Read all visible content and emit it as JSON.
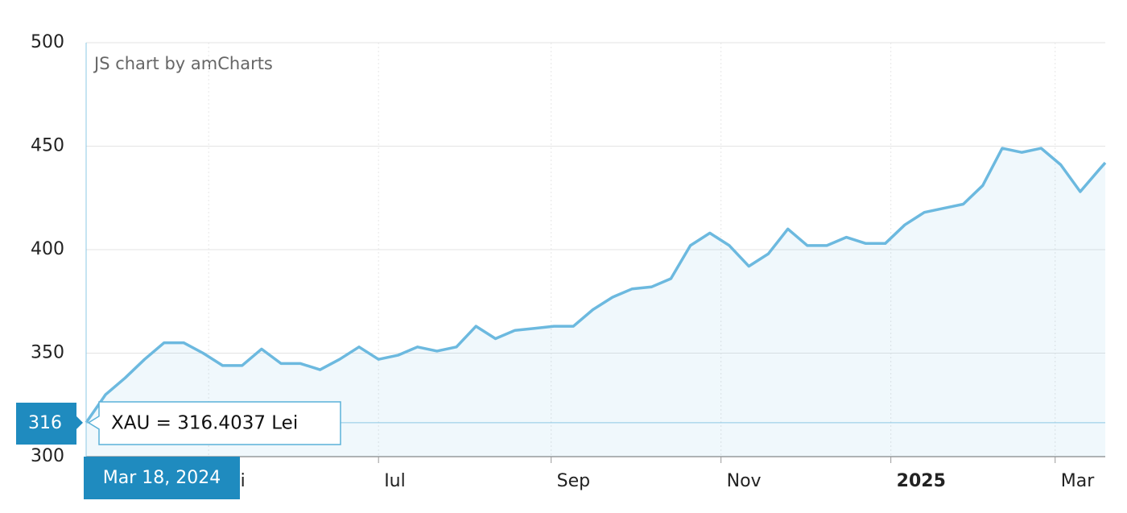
{
  "chart_data": {
    "type": "area",
    "credit": "JS chart by amCharts",
    "series": [
      {
        "name": "XAU",
        "color": "#6cb9df",
        "x": [
          "2024-03-18",
          "2024-03-25",
          "2024-04-01",
          "2024-04-08",
          "2024-04-15",
          "2024-04-22",
          "2024-04-29",
          "2024-05-06",
          "2024-05-13",
          "2024-05-20",
          "2024-05-27",
          "2024-06-03",
          "2024-06-10",
          "2024-06-17",
          "2024-06-24",
          "2024-07-01",
          "2024-07-08",
          "2024-07-15",
          "2024-07-22",
          "2024-07-29",
          "2024-08-05",
          "2024-08-12",
          "2024-08-19",
          "2024-08-26",
          "2024-09-02",
          "2024-09-09",
          "2024-09-16",
          "2024-09-23",
          "2024-09-30",
          "2024-10-07",
          "2024-10-14",
          "2024-10-21",
          "2024-10-28",
          "2024-11-04",
          "2024-11-11",
          "2024-11-18",
          "2024-11-25",
          "2024-12-02",
          "2024-12-09",
          "2024-12-16",
          "2024-12-23",
          "2024-12-30",
          "2025-01-06",
          "2025-01-13",
          "2025-01-20",
          "2025-01-27",
          "2025-02-03",
          "2025-02-10",
          "2025-02-17",
          "2025-02-24",
          "2025-03-03",
          "2025-03-10",
          "2025-03-17",
          "2025-03-19"
        ],
        "values": [
          316.4037,
          330,
          338,
          347,
          355,
          355,
          350,
          344,
          344,
          352,
          345,
          345,
          342,
          347,
          353,
          347,
          349,
          353,
          351,
          353,
          363,
          357,
          361,
          362,
          363,
          363,
          371,
          377,
          381,
          382,
          386,
          402,
          408,
          402,
          392,
          398,
          410,
          402,
          402,
          406,
          403,
          403,
          412,
          418,
          420,
          422,
          431,
          449,
          447,
          449,
          441,
          428,
          439,
          442
        ]
      }
    ],
    "xlim": [
      "2024-03-18",
      "2025-03-19"
    ],
    "xticks": [
      {
        "value": "2024-05-01",
        "label": "Mai"
      },
      {
        "value": "2024-07-01",
        "label": "Iul"
      },
      {
        "value": "2024-09-01",
        "label": "Sep"
      },
      {
        "value": "2024-11-01",
        "label": "Nov"
      },
      {
        "value": "2025-01-01",
        "label": "2025"
      },
      {
        "value": "2025-03-01",
        "label": "Mar"
      }
    ],
    "ylim": [
      300,
      500
    ],
    "yticks": [
      300,
      350,
      400,
      450,
      500
    ],
    "grid": true,
    "tooltip": {
      "text": "XAU = 316.4037 Lei",
      "date": "Mar 18, 2024",
      "y_label": "316"
    }
  }
}
